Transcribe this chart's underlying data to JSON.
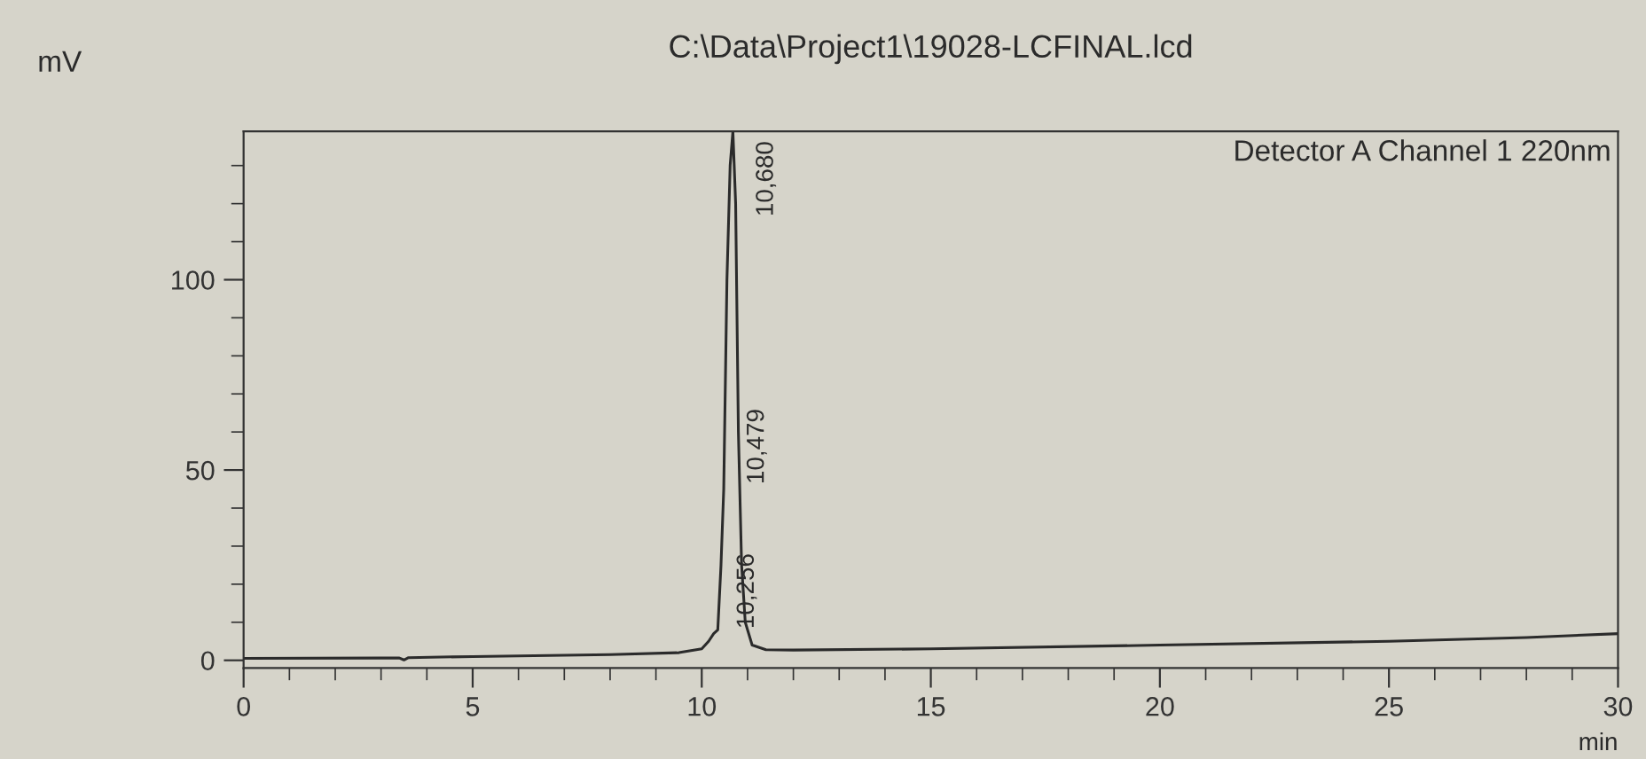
{
  "chart_data": {
    "type": "line",
    "title": "C:\\Data\\Project1\\19028-LCFINAL.lcd",
    "xlabel": "min",
    "ylabel": "mV",
    "x": [
      0,
      3,
      3.4,
      3.5,
      3.6,
      5,
      8,
      9.5,
      10.0,
      10.15,
      10.26,
      10.35,
      10.42,
      10.48,
      10.55,
      10.62,
      10.68,
      10.74,
      10.8,
      10.87,
      10.95,
      11.1,
      11.4,
      12,
      15,
      20,
      25,
      28,
      30
    ],
    "series": [
      {
        "color": "#2b2b2b",
        "values": [
          0.5,
          0.6,
          0.6,
          0.1,
          0.7,
          1,
          1.5,
          2,
          3,
          5,
          7,
          8,
          25,
          45,
          100,
          130,
          139,
          120,
          60,
          25,
          10,
          4,
          2.8,
          2.7,
          3,
          4,
          5,
          6,
          7
        ]
      }
    ],
    "xlim": [
      0,
      30
    ],
    "ylim": [
      -2,
      139
    ],
    "xticks": [
      0,
      5,
      10,
      15,
      20,
      25,
      30
    ],
    "yticks": [
      0,
      50,
      100
    ],
    "grid": false,
    "marker": "none",
    "line_style": "solid",
    "annotations": [
      "Detector A Channel 1 220nm",
      {
        "text": "10,256",
        "x": 10.26,
        "y": 7
      },
      {
        "text": "10,479",
        "x": 10.48,
        "y": 45
      },
      {
        "text": "10,680",
        "x": 10.68,
        "y": 139
      }
    ]
  }
}
